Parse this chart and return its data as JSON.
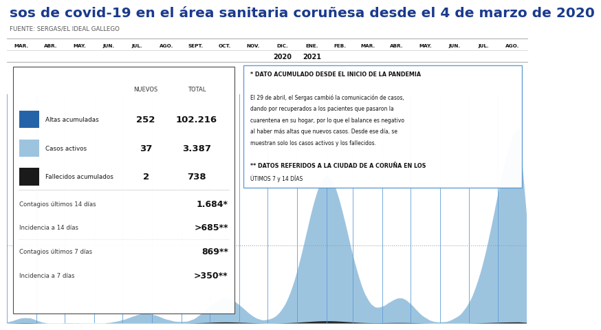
{
  "title": "sos de covid-19 en el área sanitaria coruñesa desde el 4 de marzo de 2020",
  "source": "FUENTE: SERGAS/EL IDEAL GALLEGO",
  "bg_color": "#ffffff",
  "title_color": "#1a3a8c",
  "title_fontsize": 14.5,
  "months_all": [
    "MAR.",
    "ABR.",
    "MAY.",
    "JUN.",
    "JUL.",
    "AGO.",
    "SEPT.",
    "OCT.",
    "NOV.",
    "DIC.",
    "ENE.",
    "FEB.",
    "MAR.",
    "ABR.",
    "MAY.",
    "JUN.",
    "JUL.",
    "AGO."
  ],
  "days_per_month": [
    31,
    30,
    31,
    30,
    31,
    31,
    30,
    31,
    30,
    31,
    31,
    28,
    31,
    30,
    31,
    30,
    31,
    31
  ],
  "year_label_2020": "2020",
  "year_label_2021": "2021",
  "dic_index": 9,
  "ene_index": 10,
  "legend_items": [
    {
      "label": "Altas acumuladas",
      "color": "#2563a8",
      "nuevos": "252",
      "total": "102.216"
    },
    {
      "label": "Casos activos",
      "color": "#9dc4df",
      "nuevos": "37",
      "total": "3.387"
    },
    {
      "label": "Fallecidos acumulados",
      "color": "#1a1a1a",
      "nuevos": "2",
      "total": "738"
    }
  ],
  "stats": [
    {
      "label": "Contagios últimos 14 días",
      "value": "1.684*",
      "bold": true
    },
    {
      "label": "Incidencia a 14 días",
      "value": ">685**",
      "bold": true
    },
    {
      "label": "Contagios últimos 7 días",
      "value": "869**",
      "bold": true
    },
    {
      "label": "Incidencia a 7 días",
      "value": ">350**",
      "bold": true
    }
  ],
  "note_lines": [
    "* DATO ACUMULADO DESDE EL INICIO DE LA PANDEMIA",
    "",
    "El 29 de abril, el Sergas cambió la comunicación de casos,",
    "dando por recuperados a los pacientes que pasaron la",
    "cuarentena en su hogar, por lo que el balance es negativo",
    "al haber más altas que nuevos casos. Desde ese día, se",
    "muestran solo los casos activos y los fallecidos.",
    "",
    "** DATOS REFERIDOS A LA CIUDAD DE A CORUÑA EN LOS",
    "ÚTIMOS 7 y 14 DÍAS"
  ],
  "area_color": "#9dc4df",
  "deaths_color": "#2a2a2a",
  "vline_color": "#5b9bd5",
  "dotted_line_color": "#999999",
  "box_edge_color": "#444444",
  "note_box_edge_color": "#5b9bd5"
}
